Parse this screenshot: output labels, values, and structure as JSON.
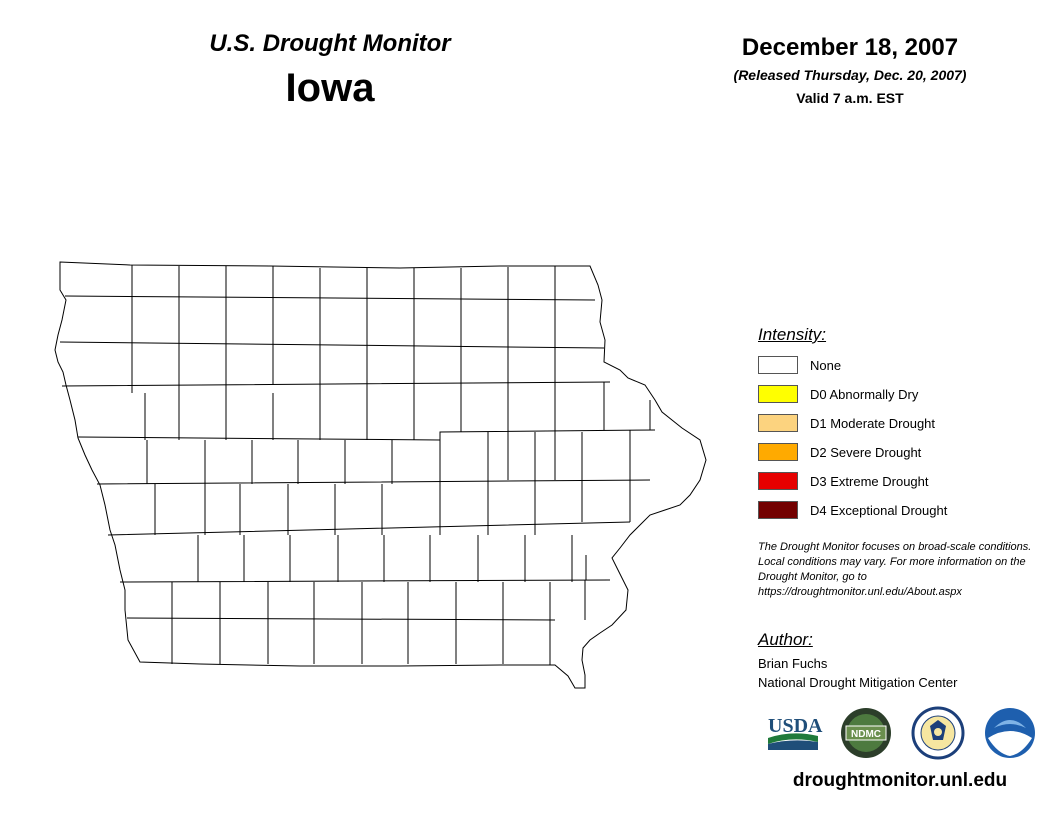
{
  "header": {
    "monitor_title": "U.S. Drought Monitor",
    "state": "Iowa",
    "date": "December 18, 2007",
    "released": "(Released Thursday, Dec. 20, 2007)",
    "valid": "Valid 7 a.m. EST"
  },
  "legend": {
    "title": "Intensity:",
    "items": [
      {
        "label": "None",
        "color": "#ffffff"
      },
      {
        "label": "D0 Abnormally Dry",
        "color": "#ffff00"
      },
      {
        "label": "D1 Moderate Drought",
        "color": "#fcd37f"
      },
      {
        "label": "D2 Severe Drought",
        "color": "#ffaa00"
      },
      {
        "label": "D3 Extreme Drought",
        "color": "#e60000"
      },
      {
        "label": "D4 Exceptional Drought",
        "color": "#730000"
      }
    ]
  },
  "note": "The Drought Monitor focuses on broad-scale conditions. Local conditions may vary. For more information on the Drought Monitor, go to https://droughtmonitor.unl.edu/About.aspx",
  "author": {
    "title": "Author:",
    "name": "Brian Fuchs",
    "org": "National Drought Mitigation Center"
  },
  "logos": {
    "usda": "USDA",
    "ndmc": "NDMC"
  },
  "website": "droughtmonitor.unl.edu",
  "map": {
    "outline_color": "#000000",
    "fill_color": "#ffffff",
    "drought_category": "None"
  }
}
